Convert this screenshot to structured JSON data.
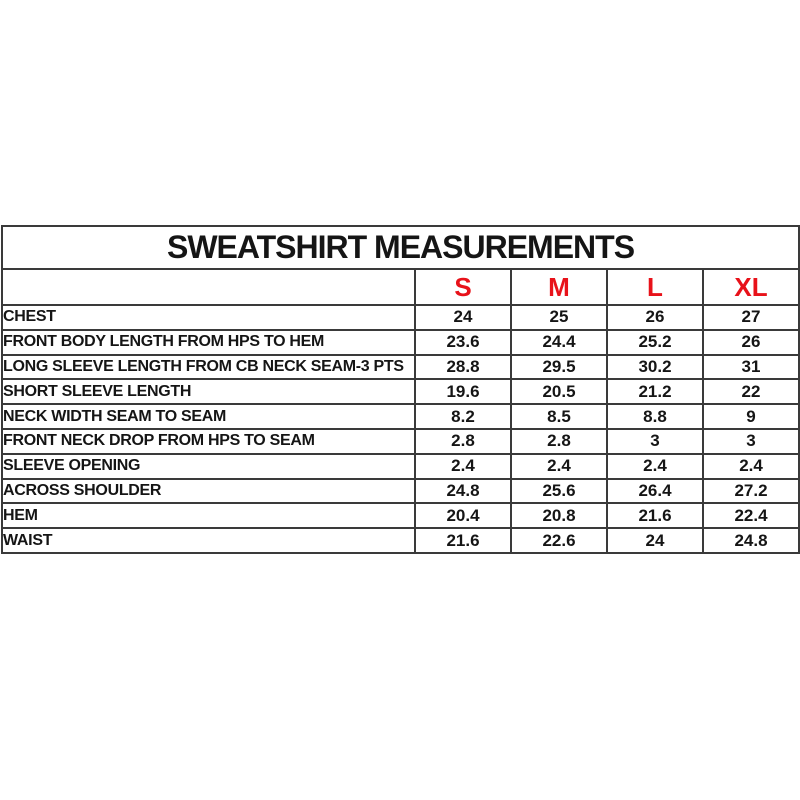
{
  "colors": {
    "background": "#ffffff",
    "border": "#3a3a3a",
    "text": "#151515",
    "size_header_red": "#e8121a"
  },
  "chart_data": {
    "type": "table",
    "title": "SWEATSHIRT MEASUREMENTS",
    "columns": [
      "",
      "S",
      "M",
      "L",
      "XL"
    ],
    "size_columns": [
      "S",
      "M",
      "L",
      "XL"
    ],
    "rows": [
      {
        "label": "CHEST",
        "values": [
          "24",
          "25",
          "26",
          "27"
        ]
      },
      {
        "label": "FRONT BODY LENGTH FROM HPS TO HEM",
        "values": [
          "23.6",
          "24.4",
          "25.2",
          "26"
        ]
      },
      {
        "label": "LONG SLEEVE LENGTH FROM CB NECK SEAM-3 PTS",
        "values": [
          "28.8",
          "29.5",
          "30.2",
          "31"
        ]
      },
      {
        "label": "SHORT SLEEVE LENGTH",
        "values": [
          "19.6",
          "20.5",
          "21.2",
          "22"
        ]
      },
      {
        "label": "NECK WIDTH SEAM TO SEAM",
        "values": [
          "8.2",
          "8.5",
          "8.8",
          "9"
        ]
      },
      {
        "label": "FRONT NECK DROP FROM HPS TO SEAM",
        "values": [
          "2.8",
          "2.8",
          "3",
          "3"
        ]
      },
      {
        "label": "SLEEVE OPENING",
        "values": [
          "2.4",
          "2.4",
          "2.4",
          "2.4"
        ]
      },
      {
        "label": "ACROSS SHOULDER",
        "values": [
          "24.8",
          "25.6",
          "26.4",
          "27.2"
        ]
      },
      {
        "label": "HEM",
        "values": [
          "20.4",
          "20.8",
          "21.6",
          "22.4"
        ]
      },
      {
        "label": "WAIST",
        "values": [
          "21.6",
          "22.6",
          "24",
          "24.8"
        ]
      }
    ]
  }
}
